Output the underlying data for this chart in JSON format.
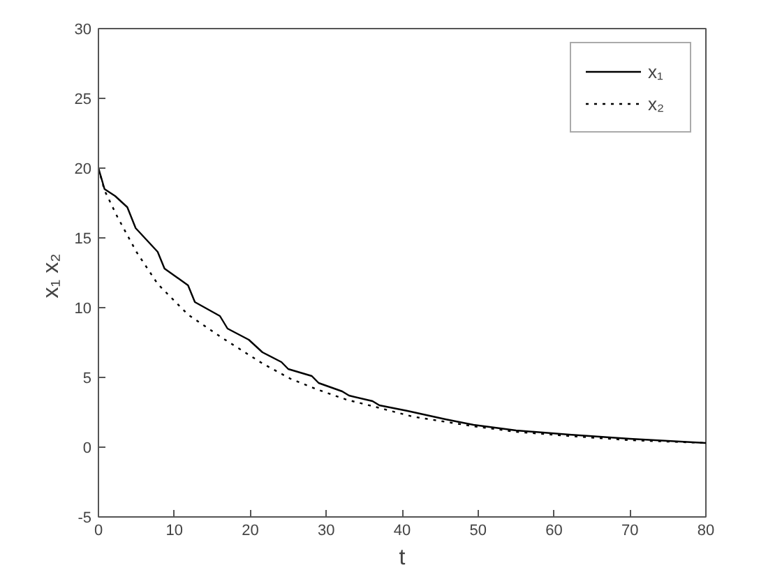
{
  "chart_data": {
    "type": "line",
    "xlabel": "t",
    "ylabel": "x₁  x₂",
    "xlim": [
      0,
      80
    ],
    "ylim": [
      -5,
      30
    ],
    "xticks": [
      0,
      10,
      20,
      30,
      40,
      50,
      60,
      70,
      80
    ],
    "yticks": [
      -5,
      0,
      5,
      10,
      15,
      20,
      25,
      30
    ],
    "grid": false,
    "legend": "top right",
    "series": [
      {
        "name": "x₁",
        "color": "#000000",
        "line_style": "solid",
        "x": [
          0,
          0.8,
          2.2,
          3.8,
          4.9,
          7.8,
          8.7,
          11.8,
          12.7,
          16,
          17,
          19.8,
          21.6,
          24.1,
          25,
          28.1,
          29,
          32.1,
          33,
          36.1,
          37,
          40.7,
          45.7,
          49.4,
          55,
          62,
          70,
          80
        ],
        "values": [
          20,
          18.5,
          18,
          17.2,
          15.7,
          14,
          12.8,
          11.6,
          10.4,
          9.4,
          8.5,
          7.7,
          6.8,
          6.1,
          5.6,
          5.1,
          4.6,
          4,
          3.7,
          3.3,
          3,
          2.6,
          2,
          1.6,
          1.2,
          0.9,
          0.6,
          0.3
        ]
      },
      {
        "name": "x₂",
        "color": "#000000",
        "line_style": "dotted",
        "x": [
          0,
          0.8,
          2.5,
          5,
          7.8,
          11.8,
          16.1,
          21.6,
          25.3,
          29,
          32.7,
          36.4,
          41.3,
          49.4,
          55,
          62,
          70,
          80
        ],
        "values": [
          20,
          18.4,
          16.5,
          14,
          11.7,
          9.5,
          7.9,
          6,
          4.9,
          4.1,
          3.4,
          2.9,
          2.2,
          1.5,
          1.1,
          0.8,
          0.5,
          0.3
        ]
      }
    ]
  }
}
